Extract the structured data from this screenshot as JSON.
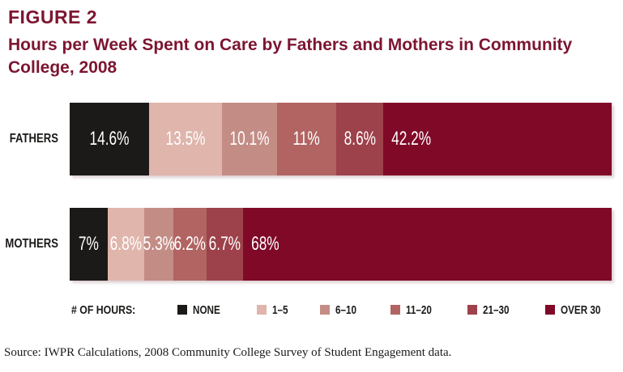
{
  "figure": {
    "label": "FIGURE 2",
    "title_lines": [
      "Hours per Week Spent on Care by Fathers and Mothers in Community",
      "College, 2008"
    ]
  },
  "colors": {
    "title_maroon": "#7C1531",
    "none_black": "#1C1A18",
    "pink_1_5": "#DFB5AC",
    "pink_6_10": "#C38D86",
    "rose_11_20": "#B16462",
    "wine_21_30": "#9D414A",
    "maroon_over_30": "#800928",
    "label_white": "#FFFFFF"
  },
  "chart_data": {
    "type": "bar",
    "variant": "stacked-horizontal-100pct",
    "title": "Hours per Week Spent on Care by Fathers and Mothers in Community College, 2008",
    "categories": [
      "FATHERS",
      "MOTHERS"
    ],
    "legend_title": "# OF HOURS:",
    "legend_position": "bottom",
    "axis_range_pct": [
      0,
      100
    ],
    "grid": false,
    "series": [
      {
        "name": "NONE",
        "color": "#1C1A18",
        "values": [
          14.6,
          7
        ]
      },
      {
        "name": "1–5",
        "color": "#DFB5AC",
        "values": [
          13.5,
          6.8
        ]
      },
      {
        "name": "6–10",
        "color": "#C38D86",
        "values": [
          10.1,
          5.3
        ]
      },
      {
        "name": "11–20",
        "color": "#B16462",
        "values": [
          11,
          6.2
        ]
      },
      {
        "name": "21–30",
        "color": "#9D414A",
        "values": [
          8.6,
          6.7
        ]
      },
      {
        "name": "OVER 30",
        "color": "#800928",
        "values": [
          42.2,
          68
        ]
      }
    ],
    "value_labels": {
      "fathers": [
        "14.6%",
        "13.5%",
        "10.1%",
        "11%",
        "8.6%",
        "42.2%"
      ],
      "mothers": [
        "7%",
        "6.8%",
        "5.3%",
        "6.2%",
        "6.7%",
        "68%"
      ]
    }
  },
  "source": "Source: IWPR Calculations, 2008 Community College Survey of Student Engagement data."
}
